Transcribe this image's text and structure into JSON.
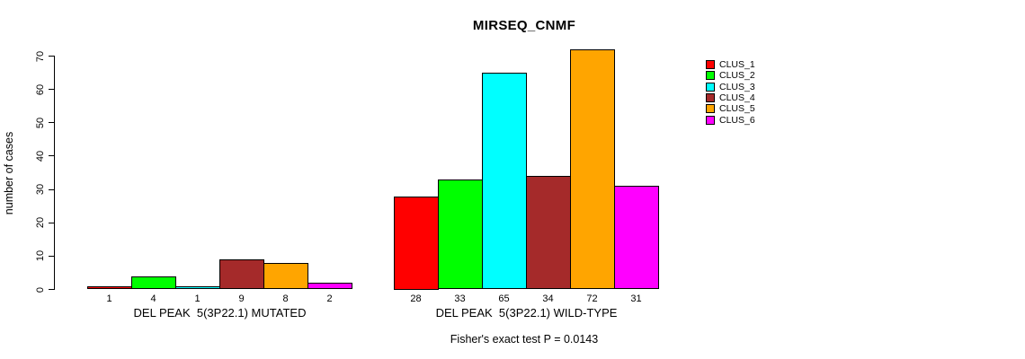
{
  "title": "MIRSEQ_CNMF",
  "footer": "Fisher's exact test P = 0.0143",
  "chart_data": {
    "type": "bar",
    "title": "MIRSEQ_CNMF",
    "xlabel": "",
    "ylabel": "number of cases",
    "ylim": [
      0,
      70
    ],
    "yticks": [
      0,
      10,
      20,
      30,
      40,
      50,
      60,
      70
    ],
    "grid": false,
    "legend_position": "right",
    "groups": [
      {
        "label": "DEL PEAK  5(3P22.1) MUTATED",
        "bar_value_labels": [
          "1",
          "4",
          "1",
          "9",
          "8",
          "2"
        ],
        "values": [
          1,
          4,
          1,
          9,
          8,
          2
        ]
      },
      {
        "label": "DEL PEAK  5(3P22.1) WILD-TYPE",
        "bar_value_labels": [
          "28",
          "33",
          "65",
          "34",
          "72",
          "31"
        ],
        "values": [
          28,
          33,
          65,
          34,
          72,
          31
        ]
      }
    ],
    "series": [
      {
        "name": "CLUS_1",
        "color": "#ff0000",
        "values": [
          1,
          28
        ]
      },
      {
        "name": "CLUS_2",
        "color": "#00ff00",
        "values": [
          4,
          33
        ]
      },
      {
        "name": "CLUS_3",
        "color": "#00ffff",
        "values": [
          1,
          65
        ]
      },
      {
        "name": "CLUS_4",
        "color": "#a52a2a",
        "values": [
          9,
          34
        ]
      },
      {
        "name": "CLUS_5",
        "color": "#ffa500",
        "values": [
          8,
          72
        ]
      },
      {
        "name": "CLUS_6",
        "color": "#ff00ff",
        "values": [
          2,
          31
        ]
      }
    ],
    "annotation": "Fisher's exact test P = 0.0143"
  }
}
